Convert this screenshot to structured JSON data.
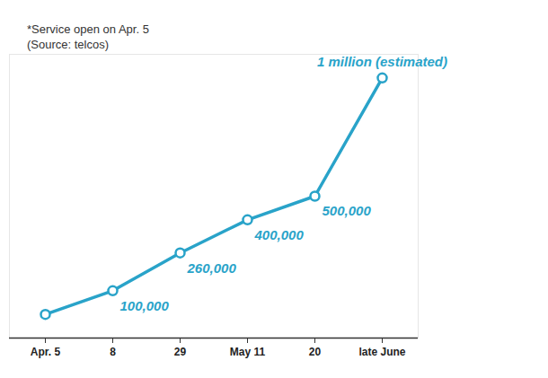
{
  "chart_data": {
    "type": "line",
    "categories": [
      "Apr. 5",
      "8",
      "29",
      "May 11",
      "20",
      "late June"
    ],
    "values": [
      0,
      100000,
      260000,
      400000,
      500000,
      1000000
    ],
    "value_labels": [
      null,
      "100,000",
      "260,000",
      "400,000",
      "500,000",
      "1 million (estimated)"
    ],
    "data_labels": true,
    "color": "#29a3c9",
    "marker": "circle",
    "ylim": [
      -100000,
      1100000
    ],
    "yticks": [],
    "tick_labels": "x",
    "annotations": [
      "*Service open on Apr. 5",
      "(Source: telcos)"
    ]
  }
}
